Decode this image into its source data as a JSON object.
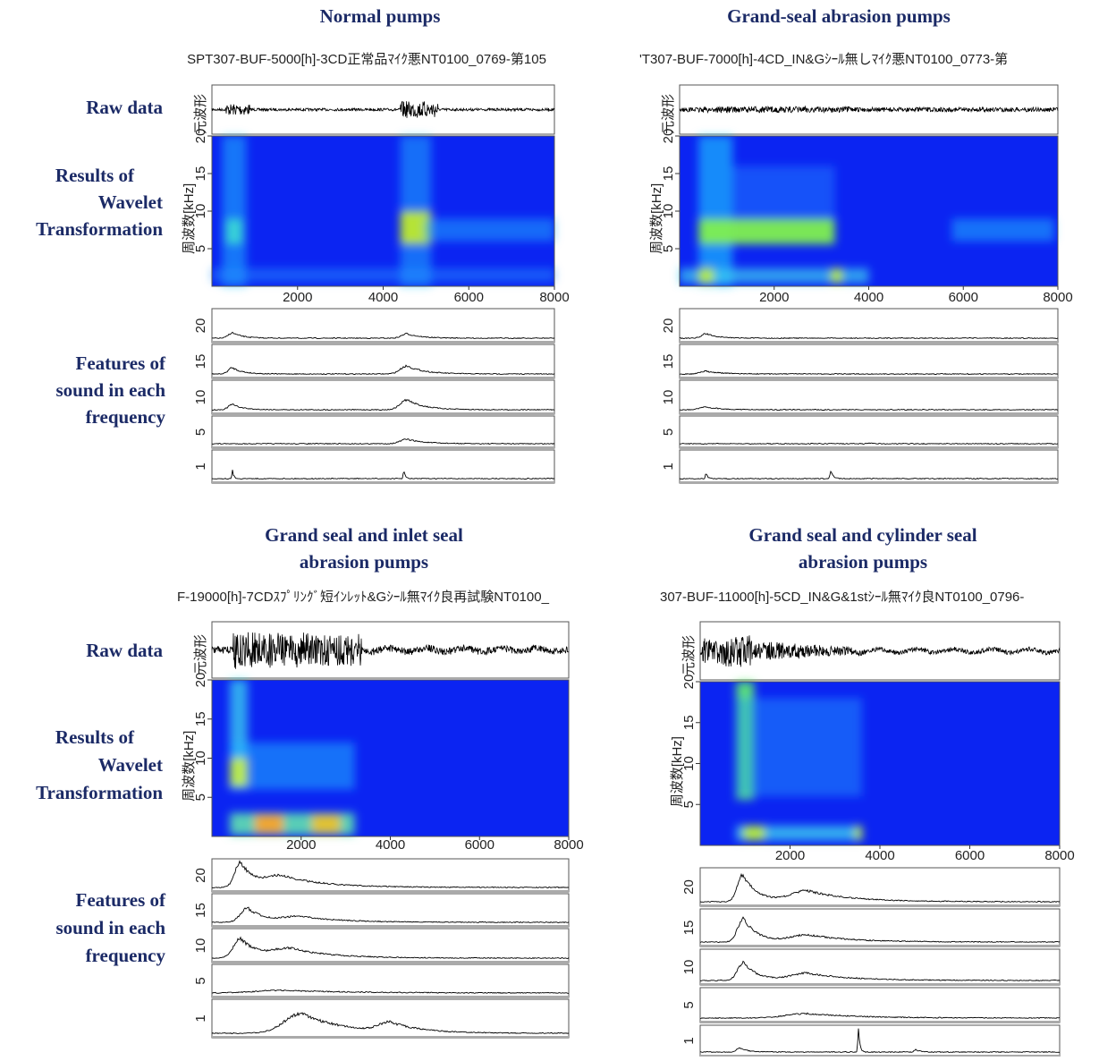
{
  "row_labels": [
    {
      "raw": "Raw data",
      "wavelet": [
        "Results of",
        "Wavelet",
        "Transformation"
      ],
      "features": [
        "Features of",
        "sound in each",
        "frequency"
      ]
    },
    {
      "raw": "Raw data",
      "wavelet": [
        "Results of",
        "Wavelet",
        "Transformation"
      ],
      "features": [
        "Features of",
        "sound in each",
        "frequency"
      ]
    }
  ],
  "panels": [
    {
      "title": [
        "Normal pumps"
      ],
      "filename": "SPT307-BUF-5000[h]-3CD正常品ﾏｲｸ悪NT0100_0769-第105",
      "raw_ylabel": "元波形",
      "spec_ylabel": "周波数[kHz]",
      "spec_yticks": [
        "5",
        "10",
        "15",
        "20"
      ],
      "spec_xticks": [
        "2000",
        "4000",
        "6000",
        "8000"
      ],
      "feature_labels": [
        "20",
        "15",
        "10",
        "5",
        "1"
      ]
    },
    {
      "title": [
        "Grand-seal abrasion pumps"
      ],
      "filename": "'T307-BUF-7000[h]-4CD_IN&Gｼｰﾙ無しﾏｲｸ悪NT0100_0773-第",
      "raw_ylabel": "元波形",
      "spec_ylabel": "周波数[kHz]",
      "spec_yticks": [
        "5",
        "10",
        "15",
        "20"
      ],
      "spec_xticks": [
        "2000",
        "4000",
        "6000",
        "8000"
      ],
      "feature_labels": [
        "20",
        "15",
        "10",
        "5",
        "1"
      ]
    },
    {
      "title": [
        "Grand seal and inlet seal",
        "abrasion pumps"
      ],
      "filename": "F-19000[h]-7CDｽﾌﾟﾘﾝｸﾞ短ｲﾝﾚｯﾄ&Gｼｰﾙ無ﾏｲｸ良再試験NT0100_",
      "raw_ylabel": "元波形",
      "spec_ylabel": "周波数[kHz]",
      "spec_yticks": [
        "5",
        "10",
        "15",
        "20"
      ],
      "spec_xticks": [
        "2000",
        "4000",
        "6000",
        "8000"
      ],
      "feature_labels": [
        "20",
        "15",
        "10",
        "5",
        "1"
      ]
    },
    {
      "title": [
        "Grand seal and cylinder seal",
        "abrasion pumps"
      ],
      "filename": "307-BUF-11000[h]-5CD_IN&G&1stｼｰﾙ無ﾏｲｸ良NT0100_0796-",
      "raw_ylabel": "元波形",
      "spec_ylabel": "周波数[kHz]",
      "spec_yticks": [
        "5",
        "10",
        "15",
        "20"
      ],
      "spec_xticks": [
        "2000",
        "4000",
        "6000",
        "8000"
      ],
      "feature_labels": [
        "20",
        "15",
        "10",
        "5",
        "1"
      ]
    }
  ]
}
